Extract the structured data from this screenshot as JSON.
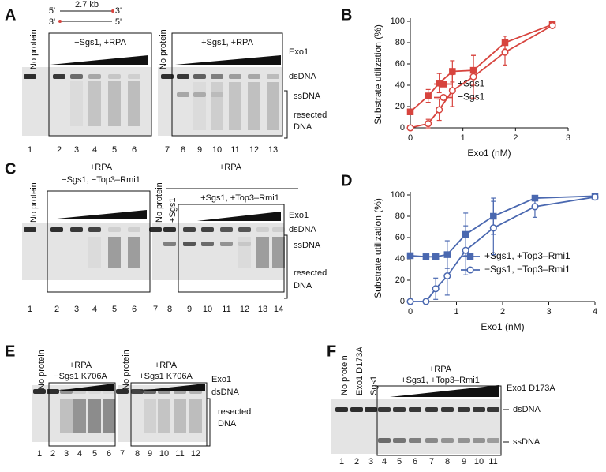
{
  "panel_A": {
    "label": "A",
    "construct": {
      "size": "2.7 kb",
      "top": [
        "5'",
        "3'"
      ],
      "bottom": [
        "3'",
        "5'"
      ]
    },
    "no_protein": [
      "No protein",
      "No protein"
    ],
    "conditions": [
      "−Sgs1, +RPA",
      "+Sgs1, +RPA"
    ],
    "titrant": "Exo1",
    "species": {
      "ds": "dsDNA",
      "ss": "ssDNA",
      "resected": [
        "resected",
        "DNA"
      ]
    },
    "lanes": [
      1,
      2,
      3,
      4,
      5,
      6,
      7,
      8,
      9,
      10,
      11,
      12,
      13
    ]
  },
  "panel_C": {
    "label": "C",
    "rpa": [
      "+RPA",
      "+RPA"
    ],
    "conditions": [
      "−Sgs1, −Top3–Rmi1",
      "+Sgs1, +Top3–Rmi1"
    ],
    "no_protein": [
      "No protein",
      "No protein"
    ],
    "sgs1_only": "+Sgs1",
    "titrant": "Exo1",
    "species": {
      "ds": "dsDNA",
      "ss": "ssDNA",
      "resected": [
        "resected",
        "DNA"
      ]
    },
    "lanes": [
      1,
      2,
      3,
      4,
      5,
      6,
      7,
      8,
      9,
      10,
      11,
      12,
      13,
      14
    ]
  },
  "panel_E": {
    "label": "E",
    "no_protein": [
      "No protein",
      "No protein"
    ],
    "rpa": [
      "+RPA",
      "+RPA"
    ],
    "conditions": [
      "−Sgs1 K706A",
      "+Sgs1 K706A"
    ],
    "titrant": "Exo1",
    "species": {
      "ds": "dsDNA",
      "resected": [
        "resected",
        "DNA"
      ]
    },
    "lanes": [
      1,
      2,
      3,
      4,
      5,
      6,
      7,
      8,
      9,
      10,
      11,
      12
    ]
  },
  "panel_F": {
    "label": "F",
    "controls": [
      "No protein",
      "Exo1 D173A",
      "Sgs1"
    ],
    "rpa": "+RPA",
    "condition": "+Sgs1, +Top3–Rmi1",
    "titrant": "Exo1 D173A",
    "species": {
      "ds": "dsDNA",
      "ss": "ssDNA"
    },
    "lanes": [
      1,
      2,
      3,
      4,
      5,
      6,
      7,
      8,
      9,
      10,
      11
    ]
  },
  "chart_data": [
    {
      "type": "line",
      "panel_label": "B",
      "xlabel": "Exo1 (nM)",
      "ylabel": "Substrate utilization (%)",
      "x": [
        0,
        0.34,
        0.55,
        0.8,
        1.2,
        1.8,
        2.7
      ],
      "xlim": [
        0,
        3
      ],
      "xticks": [
        0,
        1,
        2,
        3
      ],
      "ylim": [
        0,
        100
      ],
      "yticks": [
        0,
        20,
        40,
        60,
        80,
        100
      ],
      "legend": "center",
      "series": [
        {
          "name": "+Sgs1",
          "color": "#d7443e",
          "marker": "square",
          "filled": true,
          "values": [
            15,
            30,
            42,
            53,
            54,
            80,
            97
          ],
          "errors": [
            null,
            6,
            9,
            10,
            14,
            6,
            2
          ]
        },
        {
          "name": "−Sgs1",
          "color": "#d7443e",
          "marker": "circle",
          "filled": false,
          "values": [
            0,
            4,
            17,
            35,
            48,
            71,
            96
          ],
          "errors": [
            null,
            4,
            10,
            15,
            20,
            12,
            2
          ]
        }
      ]
    },
    {
      "type": "line",
      "panel_label": "D",
      "xlabel": "Exo1 (nM)",
      "ylabel": "Substrate utilization (%)",
      "x": [
        0,
        0.34,
        0.55,
        0.8,
        1.2,
        1.8,
        2.7,
        4
      ],
      "xlim": [
        0,
        4
      ],
      "xticks": [
        0,
        1,
        2,
        3,
        4
      ],
      "ylim": [
        0,
        100
      ],
      "yticks": [
        0,
        20,
        40,
        60,
        80,
        100
      ],
      "legend": "lower right",
      "series": [
        {
          "name": "+Sgs1, +Top3–Rmi1",
          "color": "#4a68b0",
          "marker": "square",
          "filled": true,
          "values": [
            43,
            42,
            42,
            44,
            63,
            80,
            97,
            99
          ],
          "errors": [
            null,
            2,
            3,
            13,
            20,
            17,
            2,
            null
          ]
        },
        {
          "name": "−Sgs1, −Top3–Rmi1",
          "color": "#4a68b0",
          "marker": "circle",
          "filled": false,
          "values": [
            0,
            0,
            12,
            24,
            48,
            69,
            89,
            98
          ],
          "errors": [
            null,
            null,
            10,
            18,
            23,
            25,
            10,
            null
          ]
        }
      ]
    }
  ]
}
